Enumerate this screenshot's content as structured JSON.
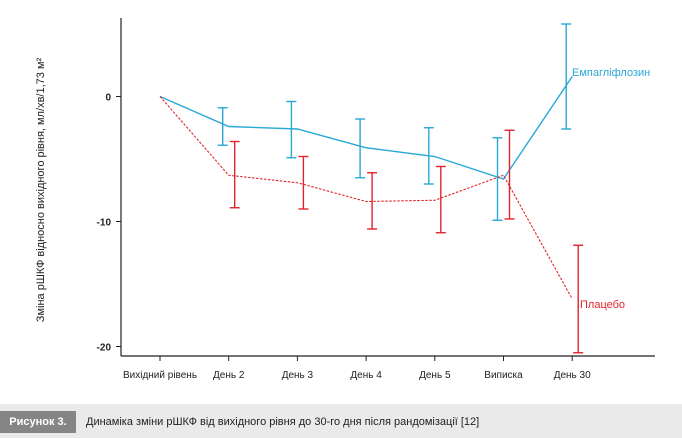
{
  "chart_data": {
    "type": "line",
    "ylabel": "Зміна рШКФ відносно вихідного рівня, мл/хв/1,73 м²",
    "categories": [
      "Вихідний рівень",
      "День 2",
      "День 3",
      "День 4",
      "День 5",
      "Виписка",
      "День 30"
    ],
    "yticks": [
      "0",
      "-10",
      "-20"
    ],
    "ylim": [
      -20.5,
      6.5
    ],
    "series": [
      {
        "name": "Емпагліфлозин",
        "color": "#29a8d6",
        "style": "solid",
        "values": [
          0,
          -2.4,
          -2.6,
          -4.1,
          -4.8,
          -6.6,
          1.6
        ],
        "err_low": [
          null,
          -3.9,
          -4.9,
          -6.5,
          -7.0,
          -9.9,
          -2.6
        ],
        "err_high": [
          null,
          -0.9,
          -0.4,
          -1.8,
          -2.5,
          -3.3,
          5.8
        ]
      },
      {
        "name": "Плацебо",
        "color": "#e0242b",
        "style": "dashed",
        "values": [
          0,
          -6.3,
          -6.9,
          -8.4,
          -8.3,
          -6.3,
          -16.2
        ],
        "err_low": [
          null,
          -8.9,
          -9.0,
          -10.6,
          -10.9,
          -9.8,
          -20.5
        ],
        "err_high": [
          null,
          -3.6,
          -4.8,
          -6.1,
          -5.6,
          -2.7,
          -11.9
        ]
      }
    ]
  },
  "caption": {
    "label": "Рисунок 3.",
    "text": "Динаміка зміни рШКФ від вихідного рівня до 30-го дня після рандомізації [12]"
  }
}
